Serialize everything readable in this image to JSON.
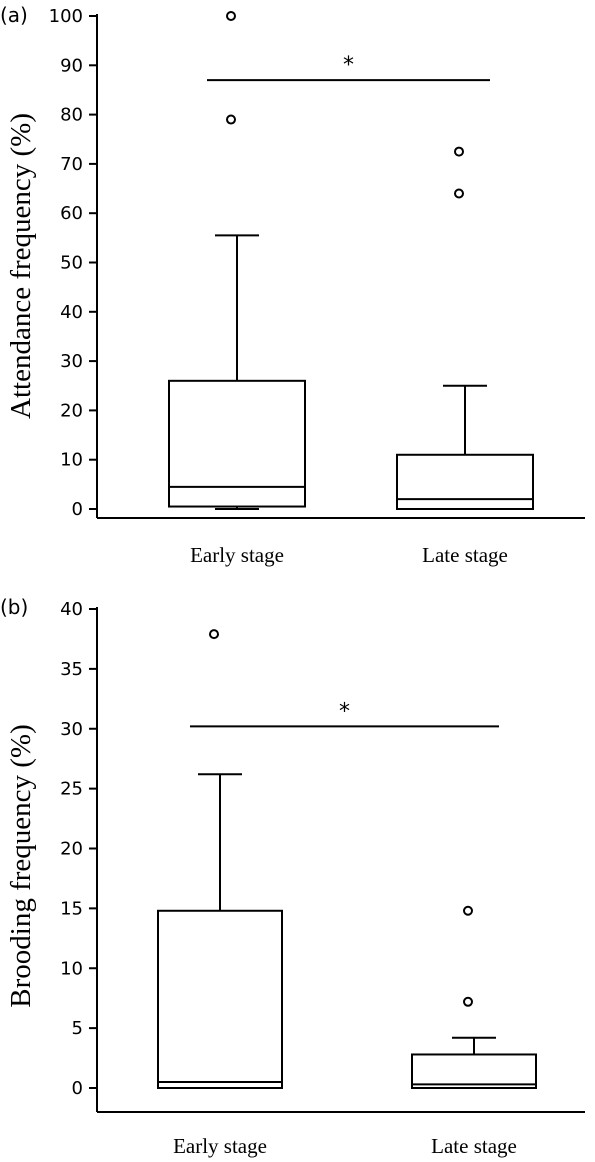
{
  "chart_data": [
    {
      "type": "box",
      "panel_label": "(a)",
      "ylabel": "Attendance frequency (%)",
      "ylim": [
        0,
        100
      ],
      "yticks": [
        0,
        10,
        20,
        30,
        40,
        50,
        60,
        70,
        80,
        90,
        100
      ],
      "categories": [
        "Early stage",
        "Late stage"
      ],
      "boxes": [
        {
          "category": "Early stage",
          "whisker_low": 0,
          "q1": 0.5,
          "median": 4.5,
          "q3": 26,
          "whisker_high": 55.5,
          "outliers": [
            79,
            100
          ]
        },
        {
          "category": "Late stage",
          "whisker_low": 0,
          "q1": 0,
          "median": 2,
          "q3": 11,
          "whisker_high": 25,
          "outliers": [
            64,
            72.5
          ]
        }
      ],
      "significance": {
        "label": "*",
        "from": "Early stage",
        "to": "Late stage",
        "y": 87
      }
    },
    {
      "type": "box",
      "panel_label": "(b)",
      "ylabel": "Brooding frequency (%)",
      "ylim": [
        0,
        40
      ],
      "yticks": [
        0,
        5,
        10,
        15,
        20,
        25,
        30,
        35,
        40
      ],
      "categories": [
        "Early stage",
        "Late stage"
      ],
      "boxes": [
        {
          "category": "Early stage",
          "whisker_low": 0,
          "q1": 0,
          "median": 0.5,
          "q3": 14.8,
          "whisker_high": 26.2,
          "outliers": [
            37.9
          ]
        },
        {
          "category": "Late stage",
          "whisker_low": 0,
          "q1": 0,
          "median": 0.3,
          "q3": 2.8,
          "whisker_high": 4.2,
          "outliers": [
            7.2,
            14.8
          ]
        }
      ],
      "significance": {
        "label": "*",
        "from": "Early stage",
        "to": "Late stage",
        "y": 30.2
      }
    }
  ]
}
